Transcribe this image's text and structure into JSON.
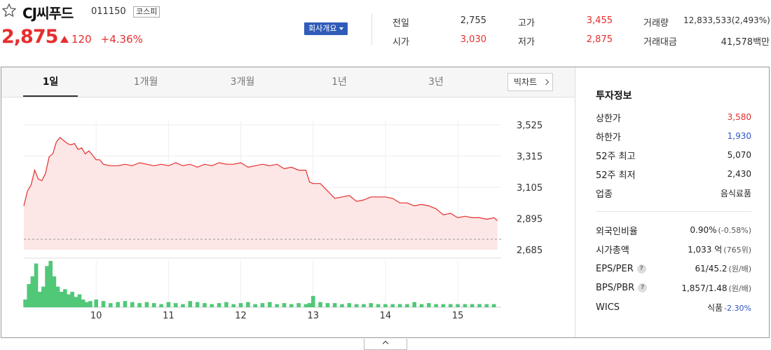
{
  "header": {
    "star_icon": "star-outline-icon",
    "name": "CJ씨푸드",
    "code": "011150",
    "market": "코스피",
    "price": "2,875",
    "change_icon": "up-triangle-icon",
    "change": "120",
    "change_pct": "+4.36%",
    "company_button": "회사개요",
    "colors": {
      "up": "#e62e2e",
      "down": "#2d57c6",
      "accent": "#2f5cb8"
    }
  },
  "quote": [
    {
      "label": "전일",
      "value": "2,755",
      "color": "normal"
    },
    {
      "label": "시가",
      "value": "3,030",
      "color": "red"
    },
    {
      "label": "고가",
      "value": "3,455",
      "color": "red"
    },
    {
      "label": "저가",
      "value": "2,875",
      "color": "red"
    },
    {
      "label": "거래량",
      "value": "12,833,533(2,493%)",
      "color": "normal"
    },
    {
      "label": "거래대금",
      "value": "41,578백만",
      "color": "normal"
    }
  ],
  "tabs": [
    "1일",
    "1개월",
    "3개월",
    "1년",
    "3년"
  ],
  "active_tab": "1일",
  "bigchart_button": "빅차트",
  "info": {
    "title": "투자정보",
    "rows": [
      {
        "label": "상한가",
        "value": "3,580",
        "color": "red"
      },
      {
        "label": "하한가",
        "value": "1,930",
        "color": "blue"
      },
      {
        "label": "52주 최고",
        "value": "5,070",
        "color": "normal"
      },
      {
        "label": "52주 최저",
        "value": "2,430",
        "color": "normal"
      },
      {
        "label": "업종",
        "value": "음식료품",
        "color": "normal"
      }
    ],
    "rows2": [
      {
        "label": "외국인비율",
        "value": "0.90%",
        "sub": "(-0.58%)",
        "help": false
      },
      {
        "label": "시가총액",
        "value": "1,033 억",
        "sub": "(765위)",
        "help": false
      },
      {
        "label": "EPS/PER",
        "value": "61/45.2",
        "sub": "(원/배)",
        "help": true
      },
      {
        "label": "BPS/PBR",
        "value": "1,857/1.48",
        "sub": "(원/배)",
        "help": true
      },
      {
        "label": "WICS",
        "value": "식품",
        "sub": "-2.30%",
        "sub_color": "blue",
        "help": false
      }
    ],
    "help_glyph": "?"
  },
  "collapse_icon": "chevron-up-icon",
  "chart_data": {
    "type": "area",
    "title": "",
    "xlabel": "",
    "ylabel": "",
    "y_ticks": [
      3525,
      3315,
      3105,
      2895,
      2685
    ],
    "y_tick_labels": [
      "3,525",
      "3,315",
      "3,105",
      "2,895",
      "2,685"
    ],
    "ylim": [
      2685,
      3525
    ],
    "x_ticks": [
      "10",
      "11",
      "12",
      "13",
      "14",
      "15"
    ],
    "x_tick_positions": [
      10,
      11,
      12,
      13,
      14,
      15
    ],
    "xlim": [
      9.0,
      15.6
    ],
    "prev_close": 2755,
    "grid": true,
    "line_color": "#e62e2e",
    "fill_color": "#fde6e6",
    "volume_color": "#50c878",
    "price_series": {
      "x": [
        9.0,
        9.05,
        9.1,
        9.15,
        9.2,
        9.25,
        9.3,
        9.35,
        9.4,
        9.45,
        9.5,
        9.55,
        9.6,
        9.65,
        9.7,
        9.75,
        9.8,
        9.85,
        9.9,
        9.95,
        10.0,
        10.05,
        10.1,
        10.2,
        10.3,
        10.4,
        10.5,
        10.6,
        10.7,
        10.8,
        10.9,
        11.0,
        11.1,
        11.2,
        11.3,
        11.4,
        11.5,
        11.6,
        11.7,
        11.8,
        11.9,
        12.0,
        12.1,
        12.2,
        12.3,
        12.4,
        12.5,
        12.6,
        12.7,
        12.8,
        12.9,
        12.95,
        13.0,
        13.1,
        13.2,
        13.3,
        13.4,
        13.5,
        13.6,
        13.7,
        13.8,
        13.9,
        14.0,
        14.1,
        14.2,
        14.3,
        14.4,
        14.5,
        14.6,
        14.7,
        14.8,
        14.9,
        15.0,
        15.1,
        15.2,
        15.3,
        15.4,
        15.5,
        15.55
      ],
      "y": [
        2980,
        3080,
        3120,
        3220,
        3160,
        3150,
        3200,
        3310,
        3330,
        3410,
        3440,
        3420,
        3400,
        3390,
        3400,
        3360,
        3370,
        3330,
        3350,
        3320,
        3290,
        3290,
        3260,
        3250,
        3250,
        3260,
        3250,
        3270,
        3260,
        3250,
        3260,
        3250,
        3270,
        3250,
        3260,
        3240,
        3260,
        3250,
        3270,
        3260,
        3260,
        3270,
        3240,
        3250,
        3260,
        3250,
        3260,
        3230,
        3240,
        3220,
        3220,
        3140,
        3130,
        3130,
        3080,
        3030,
        3040,
        3050,
        3010,
        3020,
        3040,
        3040,
        3040,
        3030,
        3000,
        3000,
        2980,
        2990,
        2980,
        2960,
        2920,
        2930,
        2900,
        2910,
        2900,
        2900,
        2890,
        2900,
        2880
      ]
    },
    "volume_series": {
      "x": [
        9.02,
        9.07,
        9.12,
        9.17,
        9.22,
        9.27,
        9.32,
        9.37,
        9.42,
        9.47,
        9.52,
        9.57,
        9.62,
        9.67,
        9.72,
        9.77,
        9.82,
        9.87,
        9.92,
        10.0,
        10.1,
        10.2,
        10.3,
        10.4,
        10.5,
        10.6,
        10.7,
        10.8,
        10.9,
        11.0,
        11.1,
        11.2,
        11.3,
        11.4,
        11.5,
        11.6,
        11.7,
        11.8,
        11.9,
        12.0,
        12.1,
        12.2,
        12.3,
        12.4,
        12.5,
        12.6,
        12.7,
        12.8,
        12.9,
        12.95,
        13.0,
        13.1,
        13.2,
        13.3,
        13.4,
        13.5,
        13.6,
        13.7,
        13.8,
        13.9,
        14.0,
        14.1,
        14.2,
        14.3,
        14.4,
        14.5,
        14.6,
        14.7,
        14.8,
        14.9,
        15.0,
        15.1,
        15.2,
        15.3,
        15.4,
        15.5
      ],
      "y": [
        15,
        45,
        60,
        85,
        30,
        40,
        80,
        90,
        60,
        40,
        30,
        35,
        25,
        30,
        20,
        25,
        15,
        10,
        12,
        15,
        12,
        8,
        10,
        12,
        10,
        8,
        10,
        8,
        6,
        10,
        8,
        6,
        12,
        10,
        8,
        6,
        8,
        10,
        6,
        8,
        10,
        6,
        8,
        10,
        6,
        8,
        6,
        8,
        6,
        8,
        22,
        10,
        8,
        8,
        6,
        8,
        6,
        6,
        8,
        6,
        6,
        6,
        6,
        6,
        10,
        6,
        8,
        6,
        6,
        6,
        6,
        6,
        6,
        6,
        6,
        6
      ]
    }
  }
}
